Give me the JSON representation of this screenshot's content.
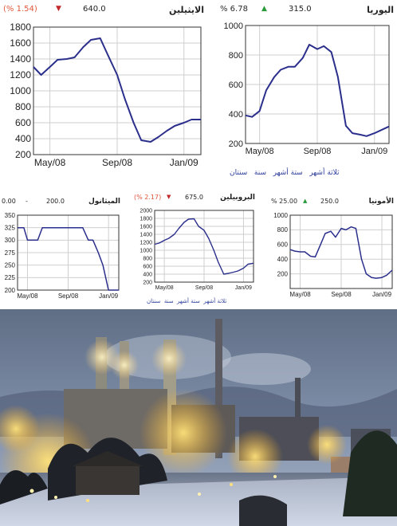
{
  "charts": [
    {
      "name": "الايثيلين",
      "pct": "(% 1.54)",
      "price": "640.0",
      "dir": "down",
      "chart_data": {
        "type": "line",
        "x": [
          "2008-04-01",
          "2008-04-15",
          "2008-05-01",
          "2008-05-15",
          "2008-06-01",
          "2008-06-15",
          "2008-07-01",
          "2008-07-15",
          "2008-08-01",
          "2008-08-15",
          "2008-09-01",
          "2008-09-15",
          "2008-10-01",
          "2008-10-15",
          "2008-11-01",
          "2008-11-15",
          "2008-12-01",
          "2008-12-15",
          "2009-01-01",
          "2009-01-15",
          "2009-02-01"
        ],
        "values": [
          1300,
          1200,
          1300,
          1390,
          1400,
          1420,
          1550,
          1640,
          1660,
          1450,
          1200,
          900,
          600,
          380,
          360,
          420,
          500,
          560,
          600,
          640,
          640
        ],
        "yticks": [
          "200",
          "400",
          "600",
          "800",
          "1000",
          "1200",
          "1400",
          "1600",
          "1800"
        ],
        "xticks": [
          "May/08",
          "Sep/08",
          "Jan/09"
        ],
        "ylim": [
          200,
          1800
        ]
      }
    },
    {
      "name": "اليوريا",
      "pct": "% 6.78",
      "price": "315.0",
      "dir": "up",
      "tabs": [
        "ثلاثة أشهر",
        "ستة أشهر",
        "سنة",
        "سنتان"
      ],
      "chart_data": {
        "type": "line",
        "x": [
          "2008-04-01",
          "2008-04-15",
          "2008-05-01",
          "2008-05-15",
          "2008-06-01",
          "2008-06-15",
          "2008-07-01",
          "2008-07-15",
          "2008-08-01",
          "2008-08-15",
          "2008-09-01",
          "2008-09-15",
          "2008-10-01",
          "2008-10-15",
          "2008-11-01",
          "2008-11-15",
          "2008-12-01",
          "2008-12-15",
          "2009-01-01",
          "2009-01-15",
          "2009-02-01"
        ],
        "values": [
          390,
          380,
          420,
          560,
          650,
          700,
          720,
          720,
          780,
          870,
          840,
          860,
          820,
          650,
          320,
          270,
          260,
          250,
          270,
          290,
          315
        ],
        "yticks": [
          "200",
          "400",
          "600",
          "800",
          "1000"
        ],
        "xticks": [
          "May/08",
          "Sep/08",
          "Jan/09"
        ],
        "ylim": [
          200,
          1000
        ]
      }
    },
    {
      "name": "الميثانول",
      "pct": "0.00",
      "price": "200.0",
      "dir": "none",
      "chart_data": {
        "type": "line",
        "x": [
          "2008-04-01",
          "2008-04-20",
          "2008-05-01",
          "2008-06-01",
          "2008-06-15",
          "2008-07-15",
          "2008-08-01",
          "2008-09-01",
          "2008-09-15",
          "2008-10-15",
          "2008-11-01",
          "2008-11-15",
          "2008-12-01",
          "2008-12-15",
          "2009-01-01",
          "2009-02-01"
        ],
        "values": [
          325,
          325,
          300,
          300,
          325,
          325,
          325,
          325,
          325,
          325,
          300,
          300,
          275,
          250,
          200,
          200
        ],
        "yticks": [
          "200",
          "225",
          "250",
          "275",
          "300",
          "325",
          "350"
        ],
        "xticks": [
          "May/08",
          "Sep/08",
          "Jan/09"
        ],
        "ylim": [
          200,
          350
        ]
      }
    },
    {
      "name": "البروبيلين",
      "pct": "(% 2.17)",
      "price": "675.0",
      "dir": "down",
      "tabs": [
        "ثلاثة أشهر",
        "ستة أشهر",
        "سنة",
        "سنتان"
      ],
      "chart_data": {
        "type": "line",
        "x": [
          "2008-04-01",
          "2008-04-15",
          "2008-05-01",
          "2008-05-15",
          "2008-06-01",
          "2008-06-15",
          "2008-07-01",
          "2008-07-15",
          "2008-08-01",
          "2008-08-15",
          "2008-09-01",
          "2008-09-15",
          "2008-10-01",
          "2008-10-15",
          "2008-11-01",
          "2008-11-15",
          "2008-12-01",
          "2008-12-15",
          "2009-01-01",
          "2009-01-15",
          "2009-02-01"
        ],
        "values": [
          1150,
          1180,
          1250,
          1300,
          1400,
          1550,
          1700,
          1780,
          1790,
          1600,
          1500,
          1300,
          1000,
          700,
          400,
          420,
          450,
          480,
          550,
          650,
          675
        ],
        "yticks": [
          "200",
          "400",
          "600",
          "800",
          "1000",
          "1200",
          "1400",
          "1600",
          "1800",
          "2000"
        ],
        "xticks": [
          "May/08",
          "Sep/08",
          "Jan/09"
        ],
        "ylim": [
          200,
          2000
        ]
      }
    },
    {
      "name": "الأمونيا",
      "pct": "% 25.00",
      "price": "250.0",
      "dir": "up",
      "chart_data": {
        "type": "line",
        "x": [
          "2008-04-01",
          "2008-04-15",
          "2008-05-01",
          "2008-05-15",
          "2008-06-01",
          "2008-06-15",
          "2008-07-01",
          "2008-07-15",
          "2008-08-01",
          "2008-08-15",
          "2008-09-01",
          "2008-09-15",
          "2008-10-01",
          "2008-10-15",
          "2008-11-01",
          "2008-11-15",
          "2008-12-01",
          "2008-12-15",
          "2009-01-01",
          "2009-01-15",
          "2009-02-01"
        ],
        "values": [
          530,
          510,
          500,
          500,
          440,
          430,
          600,
          750,
          780,
          700,
          820,
          800,
          840,
          820,
          400,
          200,
          150,
          140,
          150,
          180,
          250
        ],
        "yticks": [
          "200",
          "400",
          "600",
          "800",
          "1000"
        ],
        "xticks": [
          "May/08",
          "Sep/08",
          "Jan/09"
        ],
        "ylim": [
          0,
          1000
        ]
      }
    }
  ],
  "colors": {
    "line": "#2b2f8c",
    "grid": "#cfcfcf",
    "axis": "#333333"
  }
}
